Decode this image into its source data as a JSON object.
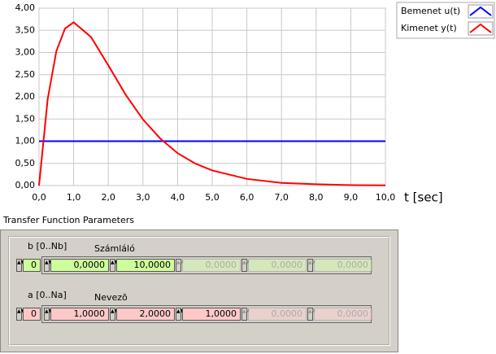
{
  "chart_data": {
    "type": "line",
    "x_label": "t [sec]",
    "x": [
      0,
      0.25,
      0.5,
      0.75,
      1,
      1.5,
      2,
      2.5,
      3,
      3.5,
      4,
      4.5,
      5,
      6,
      7,
      8,
      9,
      10
    ],
    "series": [
      {
        "name": "Bemenet u(t)",
        "color": "#0000ff",
        "values": [
          1,
          1,
          1,
          1,
          1,
          1,
          1,
          1,
          1,
          1,
          1,
          1,
          1,
          1,
          1,
          1,
          1,
          1
        ]
      },
      {
        "name": "Kimenet y(t)",
        "color": "#ff0000",
        "values": [
          0,
          1.95,
          3.03,
          3.54,
          3.68,
          3.35,
          2.71,
          2.05,
          1.49,
          1.06,
          0.73,
          0.5,
          0.34,
          0.15,
          0.06,
          0.03,
          0.01,
          0.005
        ]
      }
    ],
    "xlim": [
      0,
      10
    ],
    "xticks": [
      {
        "value": 0,
        "label": "0,0"
      },
      {
        "value": 1,
        "label": "1,0"
      },
      {
        "value": 2,
        "label": "2,0"
      },
      {
        "value": 3,
        "label": "3,0"
      },
      {
        "value": 4,
        "label": "4,0"
      },
      {
        "value": 5,
        "label": "5,0"
      },
      {
        "value": 6,
        "label": "6,0"
      },
      {
        "value": 7,
        "label": "7,0"
      },
      {
        "value": 8,
        "label": "8,0"
      },
      {
        "value": 9,
        "label": "9,0"
      },
      {
        "value": 10,
        "label": "10,0"
      }
    ],
    "ylim": [
      0,
      4
    ],
    "yticks": [
      {
        "value": 0,
        "label": "0,00"
      },
      {
        "value": 0.5,
        "label": "0,50"
      },
      {
        "value": 1,
        "label": "1,00"
      },
      {
        "value": 1.5,
        "label": "1,50"
      },
      {
        "value": 2,
        "label": "2,00"
      },
      {
        "value": 2.5,
        "label": "2,50"
      },
      {
        "value": 3,
        "label": "3,00"
      },
      {
        "value": 3.5,
        "label": "3,50"
      },
      {
        "value": 4,
        "label": "4,00"
      }
    ],
    "grid": true
  },
  "parameters": {
    "title": "Transfer Function Parameters",
    "numerator": {
      "index_label": "b [0..Nb]",
      "label": "Számláló",
      "index": "0",
      "elements": [
        "0,0000",
        "10,0000",
        "0,0000",
        "0,0000",
        "0,0000"
      ],
      "enabled": [
        true,
        true,
        false,
        false,
        false
      ],
      "color": "#ccff99"
    },
    "denominator": {
      "index_label": "a [0..Na]",
      "label": "Nevezõ",
      "index": "0",
      "elements": [
        "1,0000",
        "2,0000",
        "1,0000",
        "0,0000",
        "0,0000"
      ],
      "enabled": [
        true,
        true,
        true,
        false,
        false
      ],
      "color": "#ffc8c8"
    }
  }
}
